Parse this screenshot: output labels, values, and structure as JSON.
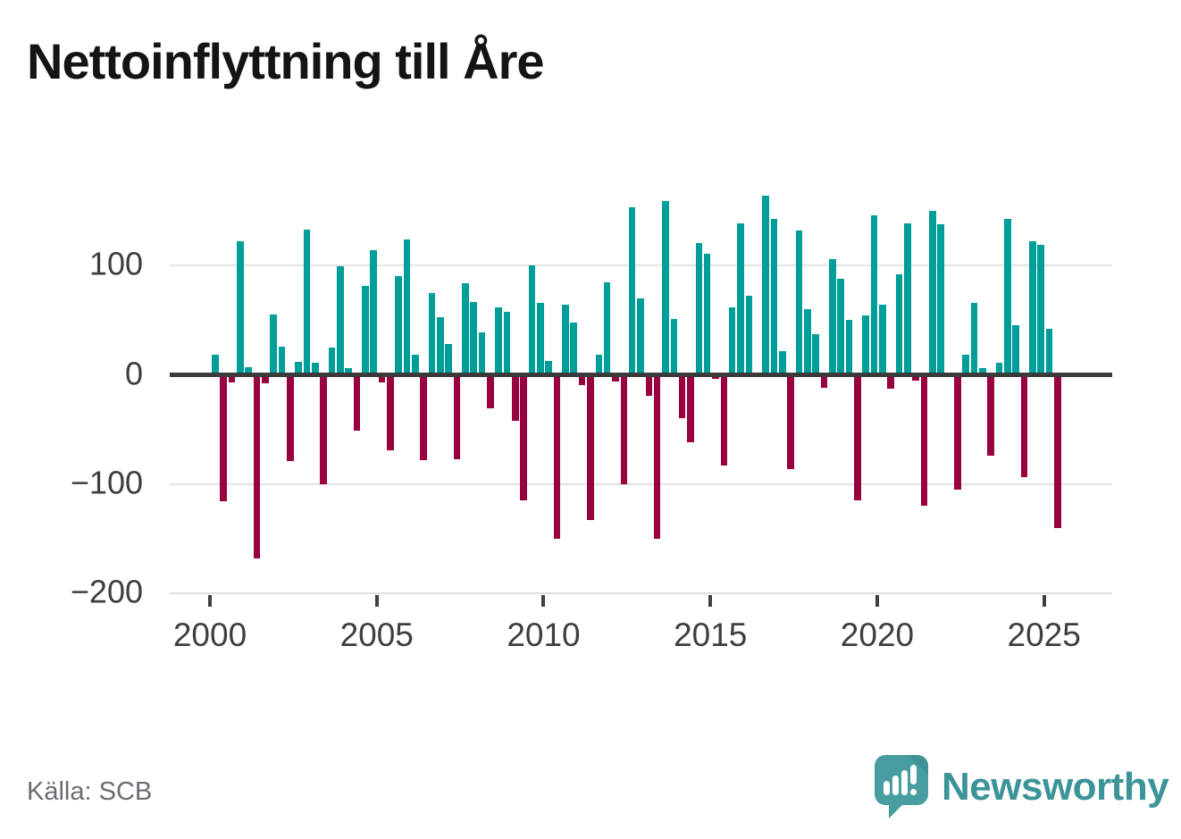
{
  "header": {
    "title": "Nettoinflyttning till Åre"
  },
  "footer": {
    "source": "Källa: SCB",
    "brand": "Newsworthy"
  },
  "chart_data": {
    "type": "bar",
    "title": "Nettoinflyttning till Åre",
    "xlabel": "",
    "ylabel": "",
    "ylim": [
      -200,
      175
    ],
    "grid": "horizontal",
    "legend": "none",
    "positive_color": "#009E98",
    "negative_color": "#990040",
    "x": [
      "2000K1",
      "2000K2",
      "2000K3",
      "2000K4",
      "2001K1",
      "2001K2",
      "2001K3",
      "2001K4",
      "2002K1",
      "2002K2",
      "2002K3",
      "2002K4",
      "2003K1",
      "2003K2",
      "2003K3",
      "2003K4",
      "2004K1",
      "2004K2",
      "2004K3",
      "2004K4",
      "2005K1",
      "2005K2",
      "2005K3",
      "2005K4",
      "2006K1",
      "2006K2",
      "2006K3",
      "2006K4",
      "2007K1",
      "2007K2",
      "2007K3",
      "2007K4",
      "2008K1",
      "2008K2",
      "2008K3",
      "2008K4",
      "2009K1",
      "2009K2",
      "2009K3",
      "2009K4",
      "2010K1",
      "2010K2",
      "2010K3",
      "2010K4",
      "2011K1",
      "2011K2",
      "2011K3",
      "2011K4",
      "2012K1",
      "2012K2",
      "2012K3",
      "2012K4",
      "2013K1",
      "2013K2",
      "2013K3",
      "2013K4",
      "2014K1",
      "2014K2",
      "2014K3",
      "2014K4",
      "2015K1",
      "2015K2",
      "2015K3",
      "2015K4",
      "2016K1",
      "2016K2",
      "2016K3",
      "2016K4",
      "2017K1",
      "2017K2",
      "2017K3",
      "2017K4",
      "2018K1",
      "2018K2",
      "2018K3",
      "2018K4",
      "2019K1",
      "2019K2",
      "2019K3",
      "2019K4",
      "2020K1",
      "2020K2",
      "2020K3",
      "2020K4",
      "2021K1",
      "2021K2",
      "2021K3",
      "2021K4",
      "2022K1",
      "2022K2",
      "2022K3",
      "2022K4",
      "2023K1",
      "2023K2",
      "2023K3",
      "2023K4",
      "2024K1",
      "2024K2",
      "2024K3",
      "2024K4",
      "2025K1",
      "2025K2"
    ],
    "values": [
      18,
      -116,
      -7,
      122,
      7,
      -168,
      -8,
      55,
      26,
      -79,
      12,
      133,
      11,
      -100,
      25,
      99,
      6,
      -51,
      81,
      114,
      -7,
      -69,
      90,
      124,
      18,
      -78,
      75,
      53,
      28,
      -77,
      84,
      67,
      39,
      -31,
      62,
      58,
      -42,
      -115,
      100,
      66,
      13,
      -150,
      64,
      48,
      -9,
      -133,
      18,
      85,
      -6,
      -100,
      153,
      70,
      -19,
      -150,
      159,
      51,
      -40,
      -62,
      121,
      111,
      -4,
      -83,
      62,
      139,
      72,
      -2,
      164,
      143,
      22,
      -86,
      132,
      60,
      37,
      -12,
      106,
      88,
      50,
      -115,
      54,
      146,
      64,
      -13,
      92,
      139,
      -5,
      -120,
      150,
      138,
      0,
      -105,
      18,
      66,
      6,
      -74,
      11,
      143,
      45,
      -94,
      122,
      119,
      42,
      -140
    ],
    "yticks": [
      {
        "v": 100,
        "label": "100"
      },
      {
        "v": 0,
        "label": "0"
      },
      {
        "v": -100,
        "label": "−100"
      },
      {
        "v": -200,
        "label": "−200"
      }
    ],
    "xticks": [
      {
        "label": "2000",
        "slot": 0
      },
      {
        "label": "2005",
        "slot": 20
      },
      {
        "label": "2010",
        "slot": 40
      },
      {
        "label": "2015",
        "slot": 60
      },
      {
        "label": "2020",
        "slot": 80
      },
      {
        "label": "2025",
        "slot": 100
      }
    ]
  }
}
